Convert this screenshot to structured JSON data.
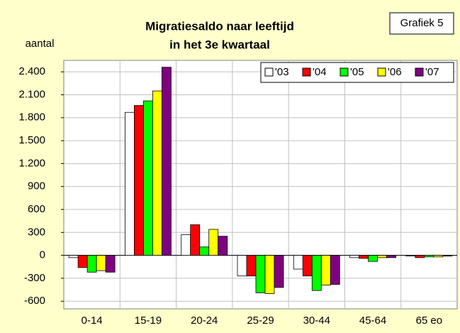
{
  "chart_data": {
    "type": "bar",
    "title": [
      "Migratiesaldo naar leeftijd",
      "in het 3e kwartaal"
    ],
    "y_label": "aantal",
    "annotation": "Grafiek 5",
    "categories": [
      "0-14",
      "15-19",
      "20-24",
      "25-29",
      "30-44",
      "45-64",
      "65 eo"
    ],
    "series": [
      {
        "name": "'03",
        "color": "#ffffff",
        "values": [
          -30,
          1870,
          270,
          -270,
          -180,
          -30,
          -10
        ]
      },
      {
        "name": "'04",
        "color": "#ff0000",
        "values": [
          -160,
          1960,
          400,
          -270,
          -270,
          -40,
          -30
        ]
      },
      {
        "name": "'05",
        "color": "#00ff00",
        "values": [
          -220,
          2020,
          110,
          -490,
          -460,
          -80,
          -20
        ]
      },
      {
        "name": "'06",
        "color": "#ffff00",
        "values": [
          -200,
          2150,
          340,
          -500,
          -390,
          -30,
          -20
        ]
      },
      {
        "name": "'07",
        "color": "#800080",
        "values": [
          -220,
          2460,
          250,
          -420,
          -380,
          -30,
          -10
        ]
      }
    ],
    "ylim": [
      -700,
      2550
    ],
    "yticks": [
      {
        "value": 2400,
        "label": "2.400"
      },
      {
        "value": 2100,
        "label": "2.100"
      },
      {
        "value": 1800,
        "label": "1.800"
      },
      {
        "value": 1500,
        "label": "1.500"
      },
      {
        "value": 1200,
        "label": "1.200"
      },
      900,
      600,
      300,
      0,
      -300,
      -600
    ],
    "grid": true,
    "legend": "top-right"
  }
}
